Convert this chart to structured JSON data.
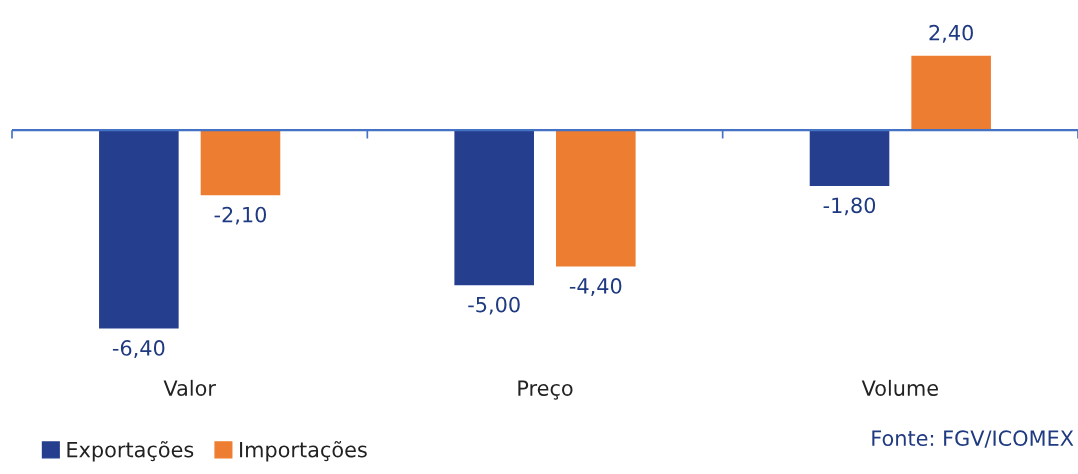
{
  "chart_data": {
    "type": "bar",
    "categories": [
      "Valor",
      "Preço",
      "Volume"
    ],
    "series": [
      {
        "name": "Exportações",
        "color": "#253f8e",
        "values": [
          -6.4,
          -5.0,
          -1.8
        ],
        "value_labels": [
          "-6,40",
          "-5,00",
          "-1,80"
        ]
      },
      {
        "name": "Importações",
        "color": "#ed7d31",
        "values": [
          -2.1,
          -4.4,
          2.4
        ],
        "value_labels": [
          "-2,10",
          "-4,40",
          "2,40"
        ]
      }
    ],
    "legend": "bottom left",
    "ref_lines": [
      {
        "axis": "y",
        "value": 0,
        "color": "#4472c4"
      }
    ],
    "annotations": [
      "Fonte: FGV/ICOMEX"
    ]
  }
}
